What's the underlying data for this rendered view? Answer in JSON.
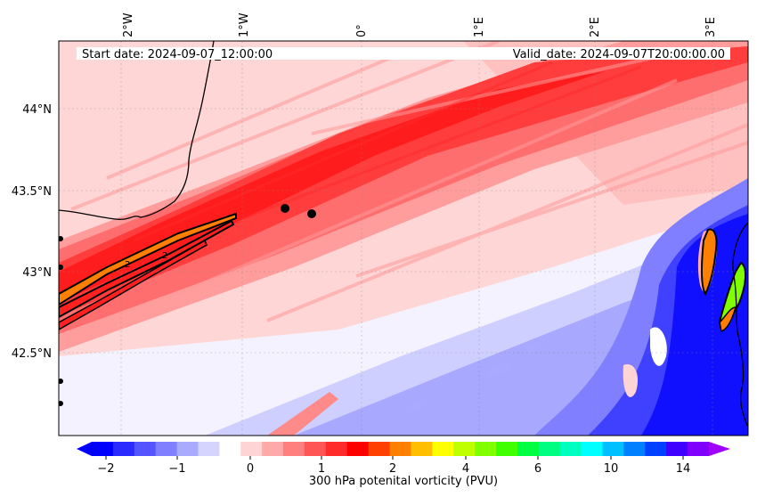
{
  "map": {
    "start_label": "Start date: 2024-09-07_12:00:00",
    "valid_label": "Valid_date: 2024-09-07T20:00:00.00",
    "lon_ticks": [
      "2°W",
      "1°W",
      "0°",
      "1°E",
      "2°E",
      "3°E"
    ],
    "lat_ticks": [
      "44°N",
      "43.5°N",
      "43°N",
      "42.5°N"
    ],
    "contour_label": "2",
    "extent": {
      "lon": [
        -2.55,
        3.2
      ],
      "lat": [
        42.0,
        44.42
      ]
    }
  },
  "colorbar": {
    "label": "300 hPa potenital vorticity (PVU)",
    "tick_labels": [
      "−2",
      "−1",
      "0",
      "1",
      "2",
      "4",
      "6",
      "10",
      "14"
    ],
    "colors": [
      "#0000ff",
      "#2a2aff",
      "#5555ff",
      "#7f7fff",
      "#aaaaff",
      "#d4d4ff",
      "#ffffff",
      "#ffd4d4",
      "#ffaaaa",
      "#ff7f7f",
      "#ff5555",
      "#ff2a2a",
      "#ff0000",
      "#ff4000",
      "#ff8000",
      "#ffbf00",
      "#ffff00",
      "#bfff00",
      "#80ff00",
      "#40ff00",
      "#00ff40",
      "#00ff80",
      "#00ffbf",
      "#00ffff",
      "#00bfff",
      "#0080ff",
      "#0040ff",
      "#4000ff",
      "#8000ff"
    ],
    "extend_min_color": "#0000ff",
    "extend_max_color": "#a000ff"
  },
  "markers": {
    "station_points": 2
  }
}
